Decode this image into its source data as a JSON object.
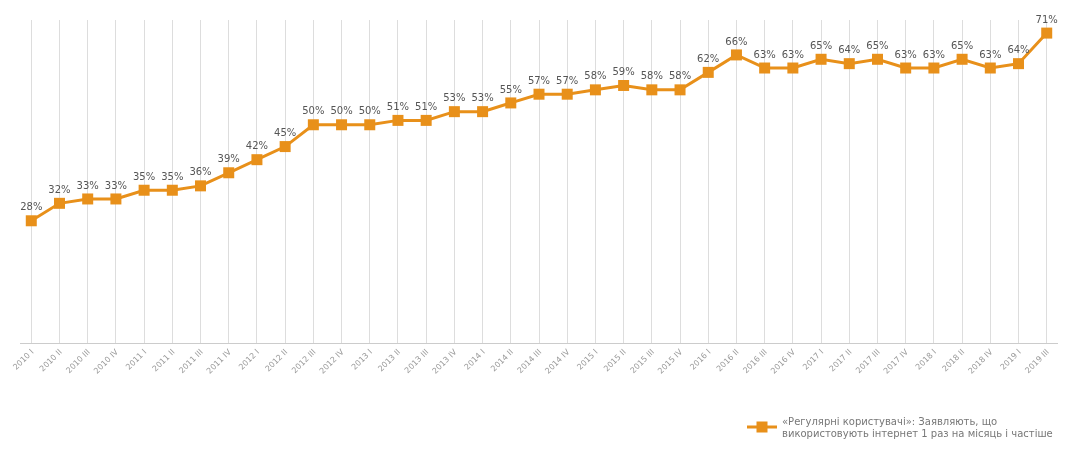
{
  "chart_data": {
    "type": "line",
    "categories": [
      "2010 I",
      "2010 II",
      "2010 III",
      "2010 IV",
      "2011 I",
      "2011 II",
      "2011 III",
      "2011 IV",
      "2012 I",
      "2012 II",
      "2012 III",
      "2012 IV",
      "2013 I",
      "2013 II",
      "2013 III",
      "2013 IV",
      "2014 I",
      "2014 II",
      "2014 III",
      "2014 IV",
      "2015 I",
      "2015 II",
      "2015 III",
      "2015 IV",
      "2016 I",
      "2016 II",
      "2016 III",
      "2016 IV",
      "2017 I",
      "2017 II",
      "2017 III",
      "2017 IV",
      "2018 I",
      "2018 II",
      "2018 IV",
      "2019 I",
      "2019 III"
    ],
    "series": [
      {
        "name": "«Регулярні користувачі»: Заявляють, що використовують інтернет 1 раз на місяць і частіше",
        "color": "#e8901a",
        "values": [
          28,
          32,
          33,
          33,
          35,
          35,
          36,
          39,
          42,
          45,
          50,
          50,
          50,
          51,
          51,
          53,
          53,
          55,
          57,
          57,
          58,
          59,
          58,
          58,
          62,
          66,
          63,
          63,
          65,
          64,
          65,
          63,
          63,
          65,
          63,
          64,
          71
        ],
        "value_labels": [
          "28%",
          "32%",
          "33%",
          "33%",
          "35%",
          "35%",
          "36%",
          "39%",
          "42%",
          "45%",
          "50%",
          "50%",
          "50%",
          "51%",
          "51%",
          "53%",
          "53%",
          "55%",
          "57%",
          "57%",
          "58%",
          "59%",
          "58%",
          "58%",
          "62%",
          "66%",
          "63%",
          "63%",
          "65%",
          "64%",
          "65%",
          "63%",
          "63%",
          "65%",
          "63%",
          "64%",
          "71%"
        ]
      }
    ],
    "ylim": [
      0,
      74
    ],
    "tick_labels": "x",
    "grid": "x",
    "legend": "bottom right",
    "marker": "square",
    "line_style": "solid"
  }
}
